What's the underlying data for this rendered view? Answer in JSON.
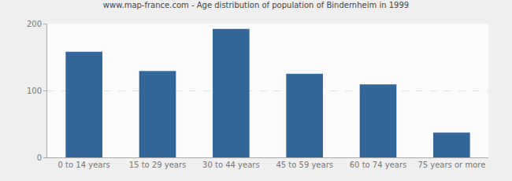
{
  "chart_data": {
    "type": "bar",
    "title": "www.map-france.com - Age distribution of population of Bindernheim in 1999",
    "categories": [
      "0 to 14 years",
      "15 to 29 years",
      "30 to 44 years",
      "45 to 59 years",
      "60 to 74 years",
      "75 years or more"
    ],
    "values": [
      158,
      129,
      192,
      125,
      109,
      37
    ],
    "color": "#336699",
    "ylim": [
      0,
      200
    ],
    "yticks": [
      0,
      100,
      200
    ],
    "grid": true
  }
}
